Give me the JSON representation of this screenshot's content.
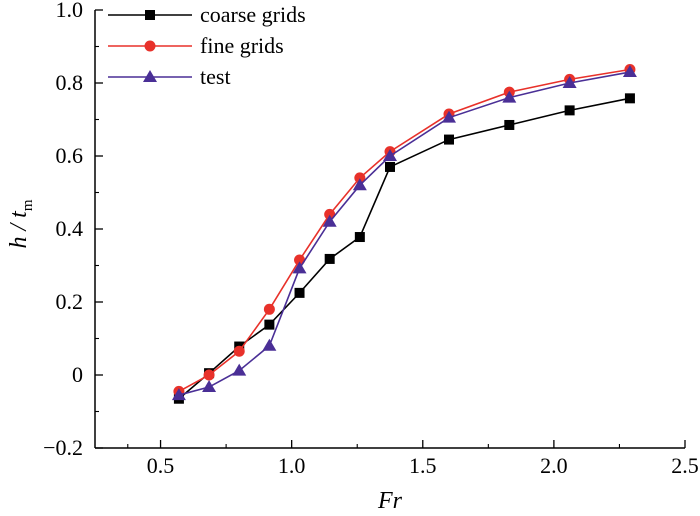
{
  "chart_data": {
    "type": "line",
    "title": "",
    "xlabel": "Fr",
    "ylabel": {
      "main": "h / t",
      "subscript": "m"
    },
    "xlim": [
      0.25,
      2.5
    ],
    "ylim": [
      -0.2,
      1.0
    ],
    "xticks": [
      0.5,
      1.0,
      1.5,
      2.0,
      2.5
    ],
    "xtick_labels": [
      "0.5",
      "1.0",
      "1.5",
      "2.0",
      "2.5"
    ],
    "yticks": [
      -0.2,
      0,
      0.2,
      0.4,
      0.6,
      0.8,
      1.0
    ],
    "ytick_labels": [
      "−0.2",
      "0",
      "0.2",
      "0.4",
      "0.6",
      "0.8",
      "1.0"
    ],
    "grid": false,
    "legend_position": "top-left",
    "series": [
      {
        "name": "coarse grids",
        "color": "#000000",
        "marker": "square",
        "x": [
          0.57,
          0.685,
          0.8,
          0.915,
          1.03,
          1.145,
          1.26,
          1.375,
          1.6,
          1.83,
          2.06,
          2.29
        ],
        "y": [
          -0.065,
          0.005,
          0.078,
          0.138,
          0.225,
          0.318,
          0.378,
          0.57,
          0.645,
          0.685,
          0.725,
          0.758
        ]
      },
      {
        "name": "fine grids",
        "color": "#e8312a",
        "marker": "circle",
        "x": [
          0.57,
          0.685,
          0.8,
          0.915,
          1.03,
          1.145,
          1.26,
          1.375,
          1.6,
          1.83,
          2.06,
          2.29
        ],
        "y": [
          -0.045,
          0.0,
          0.065,
          0.18,
          0.315,
          0.44,
          0.54,
          0.612,
          0.715,
          0.775,
          0.81,
          0.837
        ]
      },
      {
        "name": "test",
        "color": "#4a2f96",
        "marker": "triangle",
        "x": [
          0.57,
          0.685,
          0.8,
          0.915,
          1.03,
          1.145,
          1.26,
          1.375,
          1.6,
          1.83,
          2.06,
          2.29
        ],
        "y": [
          -0.055,
          -0.033,
          0.012,
          0.08,
          0.292,
          0.42,
          0.52,
          0.6,
          0.705,
          0.76,
          0.8,
          0.83
        ]
      }
    ]
  }
}
